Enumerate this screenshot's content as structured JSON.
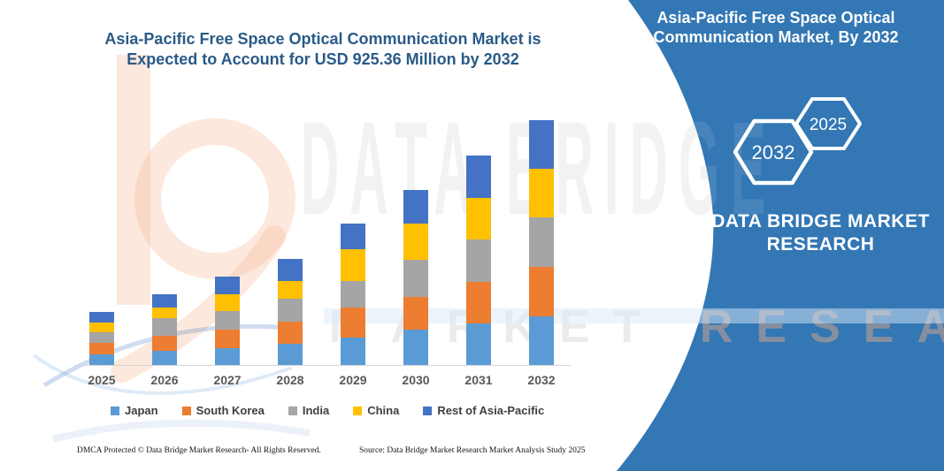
{
  "chart": {
    "title_line1": "Asia-Pacific Free Space Optical Communication Market is",
    "title_line2": "Expected to Account for USD 925.36 Million by 2032",
    "title_color": "#2A5A88"
  },
  "chart_data": {
    "type": "bar",
    "stacked": true,
    "title": "Asia-Pacific Free Space Optical Communication Market is Expected to Account for USD 925.36 Million by 2032",
    "unit": "USD Million",
    "categories": [
      "2025",
      "2026",
      "2027",
      "2028",
      "2029",
      "2030",
      "2031",
      "2032"
    ],
    "series": [
      {
        "name": "Japan",
        "color": "#5B9BD5",
        "values": [
          40.2,
          54.5,
          62.6,
          80.3,
          104.7,
          133.8,
          155.9,
          184.0
        ]
      },
      {
        "name": "South Korea",
        "color": "#ED7D31",
        "values": [
          42.5,
          55.9,
          72.6,
          83.6,
          113.8,
          122.8,
          159.6,
          186.0
        ]
      },
      {
        "name": "India",
        "color": "#A5A5A5",
        "values": [
          41.2,
          66.9,
          70.3,
          88.0,
          100.4,
          142.9,
          158.3,
          187.4
        ]
      },
      {
        "name": "China",
        "color": "#FFC000",
        "values": [
          36.8,
          41.5,
          61.2,
          66.9,
          118.1,
          136.2,
          158.6,
          184.0
        ]
      },
      {
        "name": "Rest of Asia-Pacific",
        "color": "#4472C4",
        "values": [
          39.1,
          47.8,
          66.9,
          83.6,
          97.0,
          125.8,
          159.3,
          184.0
        ]
      }
    ],
    "totals": [
      199.8,
      266.6,
      333.6,
      402.4,
      534.0,
      661.5,
      791.7,
      925.36
    ],
    "ylim": [
      0,
      925.36
    ],
    "grid": false,
    "y_axis_visible": false,
    "legend_position": "bottom"
  },
  "panel": {
    "background": "#3377B4",
    "title_line1": "Asia-Pacific Free Space Optical",
    "title_line2": "Communication Market, By 2032",
    "hexagons": [
      {
        "label": "2032"
      },
      {
        "label": "2025"
      }
    ],
    "brand_line1": "DATA BRIDGE MARKET",
    "brand_line2": "RESEARCH"
  },
  "watermark": {
    "row1": "DATA BRIDGE",
    "row2": "MARKET RESEARCH",
    "logo_peach": "#F6B290",
    "logo_blue": "#4472C4"
  },
  "footer": {
    "dmca": "DMCA Protected © Data Bridge Market Research-  All Rights Reserved.",
    "source": "Source: Data Bridge Market Research  Market Analysis Study 2025"
  }
}
